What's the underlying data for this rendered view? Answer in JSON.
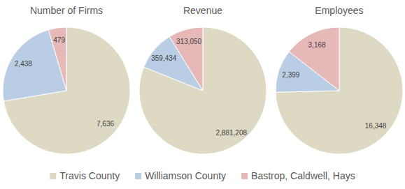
{
  "chart_data": [
    {
      "type": "pie",
      "title": "Number of Firms",
      "categories": [
        "Travis County",
        "Williamson County",
        "Bastrop, Caldwell, Hays"
      ],
      "values": [
        7636,
        2438,
        479
      ],
      "value_labels": [
        "7,636",
        "2,438",
        "479"
      ],
      "colors": [
        "#ddd9c3",
        "#b9cde5",
        "#e6b9b8"
      ],
      "data_labels": true,
      "legend": "bottom"
    },
    {
      "type": "pie",
      "title": "Revenue",
      "categories": [
        "Travis County",
        "Williamson County",
        "Bastrop, Caldwell, Hays"
      ],
      "values": [
        2881208,
        359434,
        313050
      ],
      "value_labels": [
        "2,881,208",
        "359,434",
        "313,050"
      ],
      "colors": [
        "#ddd9c3",
        "#b9cde5",
        "#e6b9b8"
      ],
      "data_labels": true
    },
    {
      "type": "pie",
      "title": "Employees",
      "categories": [
        "Travis County",
        "Williamson County",
        "Bastrop, Caldwell, Hays"
      ],
      "values": [
        16348,
        2399,
        3168
      ],
      "value_labels": [
        "16,348",
        "2,399",
        "3,168"
      ],
      "colors": [
        "#ddd9c3",
        "#b9cde5",
        "#e6b9b8"
      ],
      "data_labels": true
    }
  ]
}
